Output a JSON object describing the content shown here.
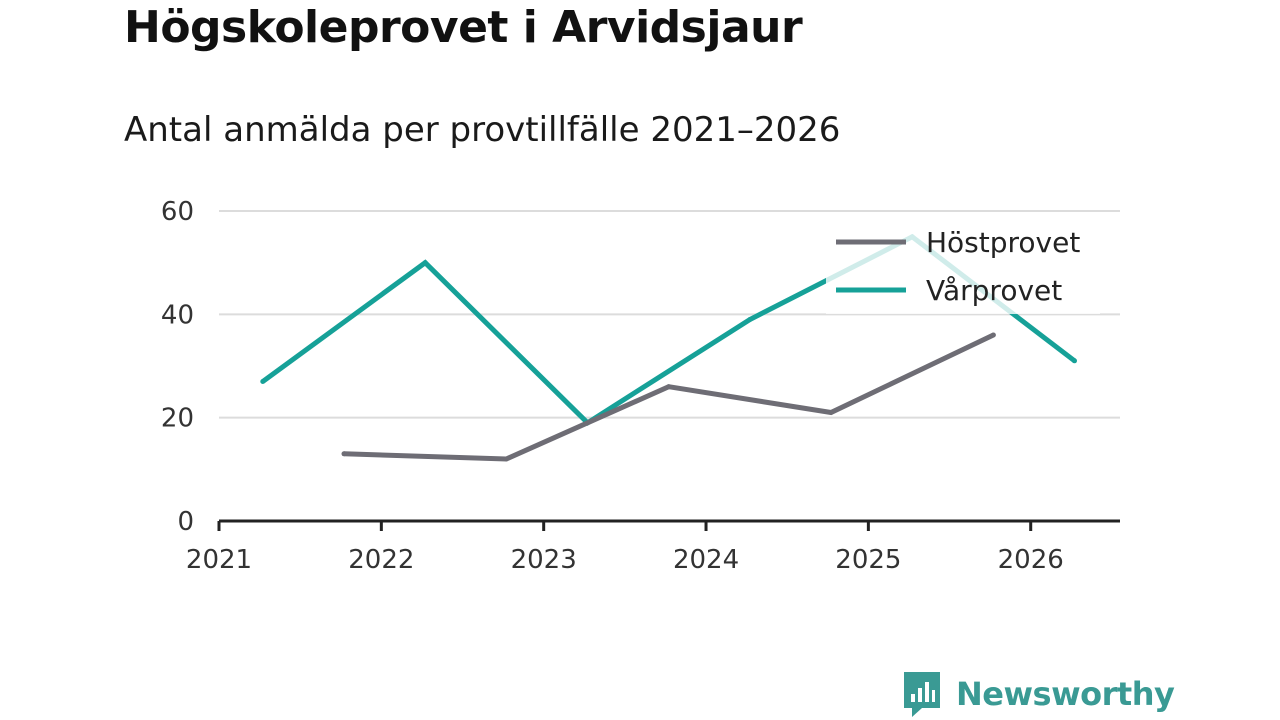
{
  "header": {
    "title": "Högskoleprovet i Arvidsjaur",
    "subtitle": "Antal anmälda per provtillfälle 2021–2026"
  },
  "brand": {
    "name": "Newsworthy",
    "color": "#3a9a94"
  },
  "colors": {
    "hostprovet": "#6e6d75",
    "varprovet": "#16a198",
    "grid": "#dcdcdc",
    "axis": "#222222"
  },
  "chart_data": {
    "type": "line",
    "title": "Högskoleprovet i Arvidsjaur",
    "subtitle": "Antal anmälda per provtillfälle 2021–2026",
    "xlabel": "",
    "ylabel": "",
    "x_ticks": [
      "2021",
      "2022",
      "2023",
      "2024",
      "2025",
      "2026"
    ],
    "xlim": [
      2021,
      2026.55
    ],
    "ylim": [
      0,
      60
    ],
    "y_ticks": [
      0,
      20,
      40,
      60
    ],
    "grid": true,
    "legend_position": "top-right",
    "series": [
      {
        "name": "Höstprovet",
        "color": "#6e6d75",
        "x": [
          2021.77,
          2022.77,
          2023.77,
          2024.77,
          2025.77
        ],
        "values": [
          13,
          12,
          26,
          21,
          36
        ]
      },
      {
        "name": "Vårprovet",
        "color": "#16a198",
        "x": [
          2021.27,
          2022.27,
          2023.27,
          2024.27,
          2025.27,
          2026.27
        ],
        "values": [
          27,
          50,
          19,
          39,
          55,
          31
        ]
      }
    ]
  }
}
